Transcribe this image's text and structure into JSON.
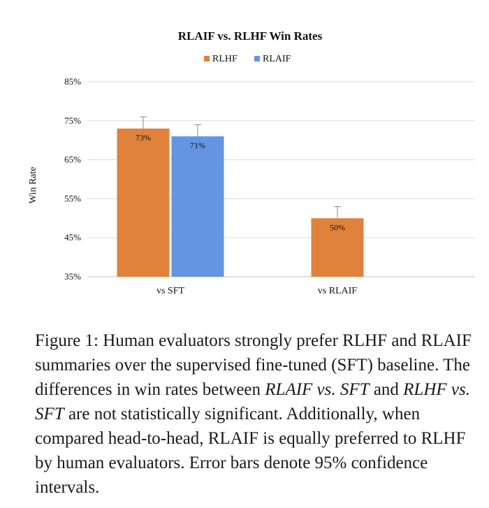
{
  "chart_data": {
    "type": "bar",
    "title": "RLAIF vs. RLHF Win Rates",
    "ylabel": "Win Rate",
    "xlabel": "",
    "categories": [
      "vs SFT",
      "vs RLAIF"
    ],
    "ylim": [
      35,
      85
    ],
    "yticks": [
      35,
      45,
      55,
      65,
      75,
      85
    ],
    "ytick_labels": [
      "35%",
      "45%",
      "55%",
      "65%",
      "75%",
      "85%"
    ],
    "grid": true,
    "legend_position": "top-center",
    "error_bars": "95% confidence intervals",
    "series": [
      {
        "name": "RLHF",
        "color": "#E0823B",
        "values": [
          73,
          50
        ],
        "labels": [
          "73%",
          "50%"
        ],
        "error_high": [
          76,
          53
        ]
      },
      {
        "name": "RLAIF",
        "color": "#6495E3",
        "values": [
          71,
          null
        ],
        "labels": [
          "71%",
          ""
        ],
        "error_high": [
          74,
          null
        ]
      }
    ]
  },
  "caption": {
    "part1": "Figure 1: Human evaluators strongly prefer RLHF and RLAIF summaries over the supervised fine-tuned (SFT) baseline. The differences in win rates between ",
    "em1": "RLAIF vs. SFT",
    "part2": " and ",
    "em2": "RLHF vs. SFT",
    "part3": " are not statistically significant. Additionally, when compared head-to-head, RLAIF is equally preferred to RLHF by human evaluators. Error bars denote 95% confidence intervals."
  }
}
